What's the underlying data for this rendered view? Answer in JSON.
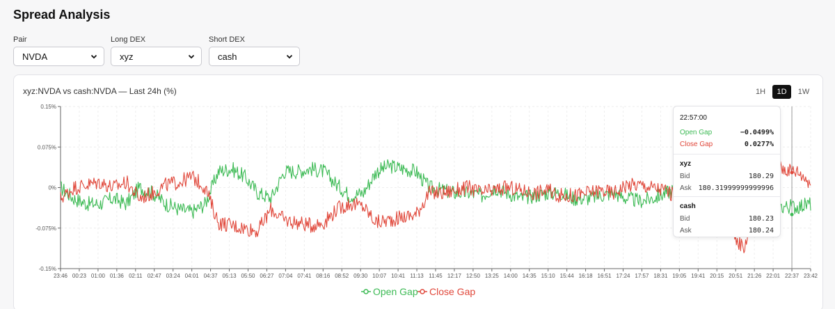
{
  "page": {
    "title": "Spread Analysis"
  },
  "filters": {
    "pair": {
      "label": "Pair",
      "value": "NVDA"
    },
    "long_dex": {
      "label": "Long DEX",
      "value": "xyz"
    },
    "short_dex": {
      "label": "Short DEX",
      "value": "cash"
    }
  },
  "chart": {
    "title": "xyz:NVDA vs cash:NVDA — Last 24h (%)",
    "ranges": [
      "1H",
      "1D",
      "1W"
    ],
    "active_range": "1D"
  },
  "tooltip": {
    "time": "22:57:00",
    "open_gap_label": "Open Gap",
    "open_gap_value": "−0.0499%",
    "close_gap_label": "Close Gap",
    "close_gap_value": "0.0277%",
    "xyz": {
      "name": "xyz",
      "bid_label": "Bid",
      "bid": "180.29",
      "ask_label": "Ask",
      "ask": "180.31999999999996"
    },
    "cash": {
      "name": "cash",
      "bid_label": "Bid",
      "bid": "180.23",
      "ask_label": "Ask",
      "ask": "180.24"
    }
  },
  "colors": {
    "open": "#3cba54",
    "close": "#e0473a"
  },
  "chart_data": {
    "type": "line",
    "title": "xyz:NVDA vs cash:NVDA — Last 24h (%)",
    "xlabel": "",
    "ylabel": "",
    "ylim": [
      -0.15,
      0.15
    ],
    "y_ticks": [
      "0.15%",
      "0.075%",
      "0%",
      "-0.075%",
      "-0.15%"
    ],
    "y_tick_values": [
      0.15,
      0.075,
      0,
      -0.075,
      -0.15
    ],
    "x_ticks": [
      "23:46",
      "00:23",
      "01:00",
      "01:36",
      "02:11",
      "02:47",
      "03:24",
      "04:01",
      "04:37",
      "05:13",
      "05:50",
      "06:27",
      "07:04",
      "07:41",
      "08:16",
      "08:52",
      "09:30",
      "10:07",
      "10:41",
      "11:13",
      "11:45",
      "12:17",
      "12:50",
      "13:25",
      "14:00",
      "14:35",
      "15:10",
      "15:44",
      "16:18",
      "16:51",
      "17:24",
      "17:57",
      "18:31",
      "19:05",
      "19:41",
      "20:15",
      "20:51",
      "21:26",
      "22:01",
      "22:37",
      "23:42"
    ],
    "legend": [
      "Open Gap",
      "Close Gap"
    ],
    "series": [
      {
        "name": "Open Gap",
        "values": [
          0.0,
          -0.02,
          -0.03,
          -0.03,
          -0.02,
          -0.03,
          0.0,
          -0.01,
          -0.03,
          -0.04,
          -0.045,
          -0.03,
          0.03,
          0.035,
          0.02,
          -0.01,
          -0.02,
          0.03,
          0.03,
          0.035,
          0.03,
          0.005,
          -0.015,
          -0.01,
          0.03,
          0.04,
          0.035,
          0.03,
          0.0,
          -0.005,
          -0.01,
          -0.01,
          -0.015,
          0.0,
          -0.01,
          -0.02,
          -0.015,
          -0.01,
          -0.01,
          -0.02,
          -0.02,
          -0.015,
          -0.01,
          -0.02,
          -0.025,
          -0.02,
          -0.01,
          0.0,
          -0.025,
          0.01,
          0.0,
          -0.04,
          -0.045,
          -0.04,
          -0.04,
          -0.035,
          -0.035,
          -0.03
        ]
      },
      {
        "name": "Close Gap",
        "values": [
          -0.02,
          0.0,
          0.005,
          0.01,
          0.0,
          0.01,
          -0.02,
          -0.01,
          0.005,
          0.01,
          0.02,
          0.0,
          -0.065,
          -0.07,
          -0.075,
          -0.08,
          -0.04,
          -0.06,
          -0.065,
          -0.07,
          -0.065,
          -0.04,
          -0.03,
          -0.035,
          -0.065,
          -0.06,
          -0.055,
          -0.05,
          -0.01,
          -0.01,
          -0.005,
          0.0,
          -0.01,
          -0.005,
          0.0,
          -0.005,
          -0.01,
          -0.005,
          -0.015,
          -0.015,
          -0.01,
          -0.005,
          -0.01,
          0.005,
          0.005,
          0.0,
          -0.005,
          -0.02,
          -0.025,
          -0.02,
          -0.03,
          -0.09,
          -0.11,
          0.02,
          0.04,
          0.035,
          0.03,
          0.01
        ]
      }
    ]
  }
}
